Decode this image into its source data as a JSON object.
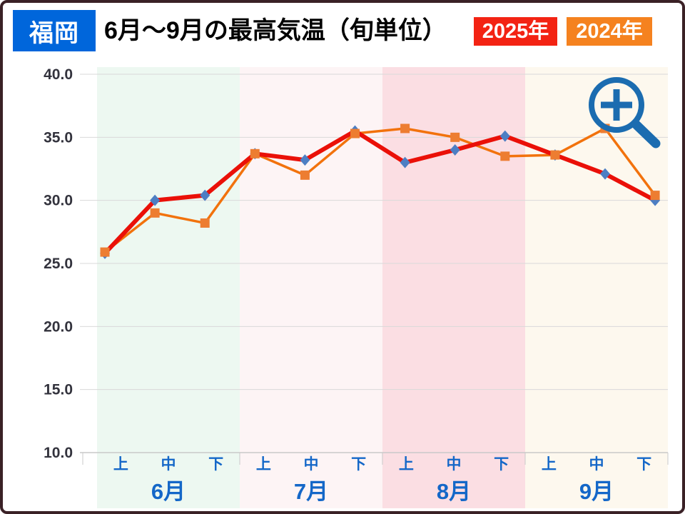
{
  "header": {
    "location": "福岡",
    "title": "6月～9月の最高気温（旬単位）",
    "legend": [
      {
        "label": "2025年",
        "color": "#f32313"
      },
      {
        "label": "2024年",
        "color": "#f5821f"
      }
    ],
    "location_bg": "#0066db"
  },
  "chart_data": {
    "type": "line",
    "title": "6月～9月の最高気温（旬単位）",
    "subtitle_location": "福岡",
    "unit": "℃",
    "grid": true,
    "legend_position": "top-right header badges",
    "ylim": [
      10,
      40
    ],
    "yticks": [
      {
        "value": 40,
        "label": "40.0"
      },
      {
        "value": 35,
        "label": "35.0"
      },
      {
        "value": 30,
        "label": "30.0"
      },
      {
        "value": 25,
        "label": "25.0"
      },
      {
        "value": 20,
        "label": "20.0"
      },
      {
        "value": 15,
        "label": "15.0"
      },
      {
        "value": 10,
        "label": "10.0"
      }
    ],
    "months": [
      {
        "label": "6月",
        "band_color": "#edf8f1"
      },
      {
        "label": "7月",
        "band_color": "#fdf4f5"
      },
      {
        "label": "8月",
        "band_color": "#fbdee3"
      },
      {
        "label": "9月",
        "band_color": "#fdf8ee"
      }
    ],
    "periods": [
      "上",
      "中",
      "下"
    ],
    "categories": [
      "6月上",
      "6月中",
      "6月下",
      "7月上",
      "7月中",
      "7月下",
      "8月上",
      "8月中",
      "8月下",
      "9月上",
      "9月中",
      "9月下"
    ],
    "series": [
      {
        "name": "2025年",
        "line_color": "#ea1008",
        "line_width": 6,
        "marker": "diamond",
        "marker_color": "#4d7ec3",
        "values": [
          25.8,
          30.0,
          30.4,
          33.7,
          33.2,
          35.5,
          33.0,
          34.0,
          35.1,
          33.6,
          32.1,
          30.0
        ]
      },
      {
        "name": "2024年",
        "line_color": "#f2720c",
        "line_width": 3.5,
        "marker": "square",
        "marker_color": "#ed7d31",
        "values": [
          25.9,
          29.0,
          28.2,
          33.7,
          32.0,
          35.3,
          35.7,
          35.0,
          33.5,
          33.6,
          35.7,
          30.4
        ]
      }
    ],
    "style": {
      "grid_color": "#d9d9d9",
      "axis_line_color": "#c9c9c9",
      "ytick_text_color": "#33333d",
      "xlabel_text_color": "#1467c8"
    }
  },
  "overlay": {
    "zoom_icon_color": "#1b6cb0"
  }
}
